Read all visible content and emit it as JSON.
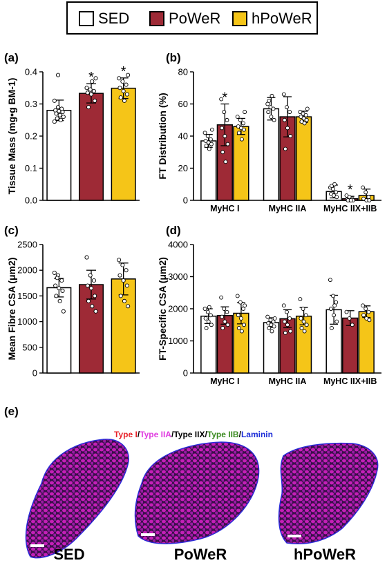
{
  "legend": [
    {
      "label": "SED",
      "color": "#ffffff"
    },
    {
      "label": "PoWeR",
      "color": "#9e2a36"
    },
    {
      "label": "hPoWeR",
      "color": "#f5c518"
    }
  ],
  "chart_data": [
    {
      "panel": "(a)",
      "type": "bar",
      "ylabel": "Tissue Mass (mg•g BM-1)",
      "ylim": [
        0,
        0.4
      ],
      "yticks": [
        "0.0",
        "0.1",
        "0.2",
        "0.3",
        "0.4"
      ],
      "categories": [
        "SED",
        "PoWeR",
        "hPoWeR"
      ],
      "values": [
        0.28,
        0.333,
        0.349
      ],
      "errors": [
        0.032,
        0.03,
        0.032
      ],
      "significance": [
        "",
        "*",
        "*"
      ],
      "points": [
        [
          0.31,
          0.29,
          0.285,
          0.28,
          0.278,
          0.275,
          0.27,
          0.265,
          0.26,
          0.255,
          0.25,
          0.245,
          0.39
        ],
        [
          0.35,
          0.345,
          0.34,
          0.335,
          0.33,
          0.31,
          0.29,
          0.37,
          0.38
        ],
        [
          0.38,
          0.37,
          0.36,
          0.35,
          0.34,
          0.33,
          0.32,
          0.31,
          0.39
        ]
      ]
    },
    {
      "panel": "(b)",
      "type": "bar",
      "ylabel": "FT Distribution (%)",
      "ylim": [
        0,
        80
      ],
      "yticks": [
        "0",
        "20",
        "40",
        "60",
        "80"
      ],
      "categories": [
        "MyHC I",
        "MyHC IIA",
        "MyHC IIX+IIB"
      ],
      "series": [
        {
          "name": "SED",
          "values": [
            37,
            57,
            5.5
          ],
          "errors": [
            4,
            7,
            4
          ],
          "points": [
            [
              42,
              40,
              38,
              37,
              36,
              35,
              34,
              32,
              44
            ],
            [
              60,
              58,
              57,
              55,
              52,
              50,
              62,
              65
            ],
            [
              8,
              7,
              5,
              4,
              3,
              2,
              9,
              10
            ]
          ]
        },
        {
          "name": "PoWeR",
          "values": [
            47,
            52,
            1
          ],
          "errors": [
            13,
            12.5,
            1.5
          ],
          "points": [
            [
              63,
              55,
              50,
              45,
              40,
              35,
              30,
              24
            ],
            [
              66,
              58,
              55,
              50,
              45,
              40,
              32
            ],
            [
              3,
              2,
              1,
              0.5,
              0,
              0,
              0,
              0
            ]
          ]
        },
        {
          "name": "hPoWeR",
          "values": [
            46,
            52,
            3
          ],
          "errors": [
            5,
            3.5,
            4
          ],
          "points": [
            [
              52,
              50,
              48,
              46,
              45,
              44,
              42,
              38,
              55
            ],
            [
              55,
              54,
              53,
              52,
              51,
              50,
              49,
              48,
              57
            ],
            [
              8,
              5,
              2,
              1,
              0,
              0
            ]
          ]
        }
      ],
      "significance": [
        [
          "",
          "*",
          ""
        ],
        [
          "",
          "",
          ""
        ],
        [
          "",
          "*",
          ""
        ]
      ]
    },
    {
      "panel": "(c)",
      "type": "bar",
      "ylabel": "Mean Fibre CSA (μm2)",
      "ylim": [
        0,
        2500
      ],
      "yticks": [
        "0",
        "500",
        "1000",
        "1500",
        "2000",
        "2500"
      ],
      "categories": [
        "SED",
        "PoWeR",
        "hPoWeR"
      ],
      "values": [
        1660,
        1720,
        1830
      ],
      "errors": [
        180,
        280,
        310
      ],
      "points": [
        [
          1950,
          1900,
          1800,
          1700,
          1650,
          1600,
          1500,
          1400,
          1200,
          1850
        ],
        [
          2250,
          1900,
          1800,
          1700,
          1650,
          1500,
          1400,
          1300,
          1200
        ],
        [
          2200,
          2100,
          2000,
          1900,
          1800,
          1700,
          1500,
          1400,
          1300
        ]
      ]
    },
    {
      "panel": "(d)",
      "type": "bar",
      "ylabel": "FT-Specific CSA (μm2)",
      "ylim": [
        0,
        4000
      ],
      "yticks": [
        "0",
        "1000",
        "2000",
        "3000",
        "4000"
      ],
      "categories": [
        "MyHC I",
        "MyHC IIA",
        "MyHC IIX+IIB"
      ],
      "series": [
        {
          "name": "SED",
          "values": [
            1770,
            1570,
            1970
          ],
          "errors": [
            230,
            150,
            450
          ],
          "points": [
            [
              2000,
              1900,
              1800,
              1700,
              1600,
              1500,
              1400,
              2050
            ],
            [
              1750,
              1650,
              1600,
              1550,
              1500,
              1450,
              1400,
              1300,
              1700
            ],
            [
              2900,
              2400,
              2200,
              2000,
              1800,
              1600,
              1400,
              2100
            ]
          ]
        },
        {
          "name": "PoWeR",
          "values": [
            1790,
            1690,
            1710
          ],
          "errors": [
            270,
            280,
            230
          ],
          "points": [
            [
              2350,
              2000,
              1900,
              1750,
              1600,
              1500,
              1400
            ],
            [
              2100,
              1900,
              1700,
              1600,
              1500,
              1300,
              1250
            ],
            [
              1900,
              1700,
              1500
            ]
          ]
        },
        {
          "name": "hPoWeR",
          "values": [
            1860,
            1770,
            1910
          ],
          "errors": [
            330,
            270,
            180
          ],
          "points": [
            [
              2400,
              2200,
              2000,
              1800,
              1700,
              1500,
              1400,
              1300,
              2100
            ],
            [
              2300,
              2000,
              1800,
              1700,
              1600,
              1500,
              1400,
              1300
            ],
            [
              2100,
              2000,
              1900,
              1800,
              1700,
              1650
            ]
          ]
        }
      ]
    }
  ],
  "panel_e": {
    "label": "(e)",
    "stain_parts": [
      {
        "text": "Type I",
        "color": "#e8232a"
      },
      {
        "text": "/",
        "color": "#000000"
      },
      {
        "text": "Type IIA",
        "color": "#e03ce0"
      },
      {
        "text": "/",
        "color": "#000000"
      },
      {
        "text": "Type IIX",
        "color": "#000000"
      },
      {
        "text": "/",
        "color": "#000000"
      },
      {
        "text": "Type IIB",
        "color": "#3a8a1f"
      },
      {
        "text": "/",
        "color": "#000000"
      },
      {
        "text": "Laminin",
        "color": "#1f2fd8"
      }
    ],
    "sections": [
      "SED",
      "PoWeR",
      "hPoWeR"
    ]
  }
}
